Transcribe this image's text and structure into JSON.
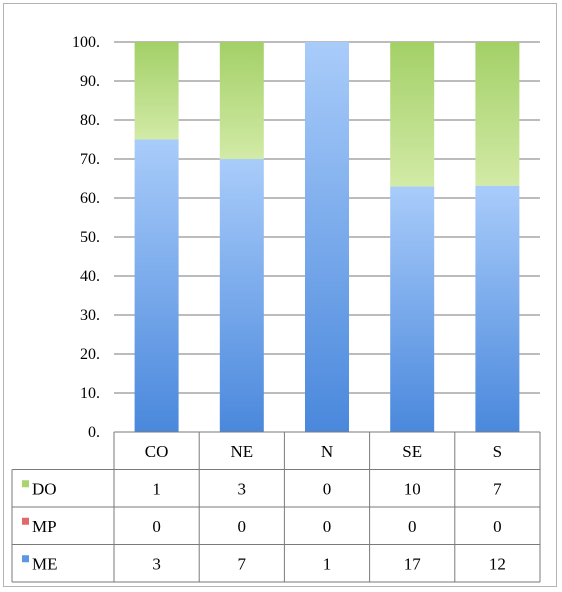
{
  "chart_data": {
    "type": "bar",
    "stacked": true,
    "percent_stacked": true,
    "categories": [
      "CO",
      "NE",
      "N",
      "SE",
      "S"
    ],
    "series": [
      {
        "name": "ME",
        "values": [
          3,
          7,
          1,
          17,
          12
        ],
        "color": "#5b97e2"
      },
      {
        "name": "MP",
        "values": [
          0,
          0,
          0,
          0,
          0
        ],
        "color": "#e06a6a"
      },
      {
        "name": "DO",
        "values": [
          1,
          3,
          0,
          10,
          7
        ],
        "color": "#a9d46e"
      }
    ],
    "yticks": [
      "0.",
      "10.",
      "20.",
      "30.",
      "40.",
      "50.",
      "60.",
      "70.",
      "80.",
      "90.",
      "100."
    ],
    "ylim": [
      0,
      100
    ],
    "grid": true,
    "legend": "data-table-left"
  }
}
